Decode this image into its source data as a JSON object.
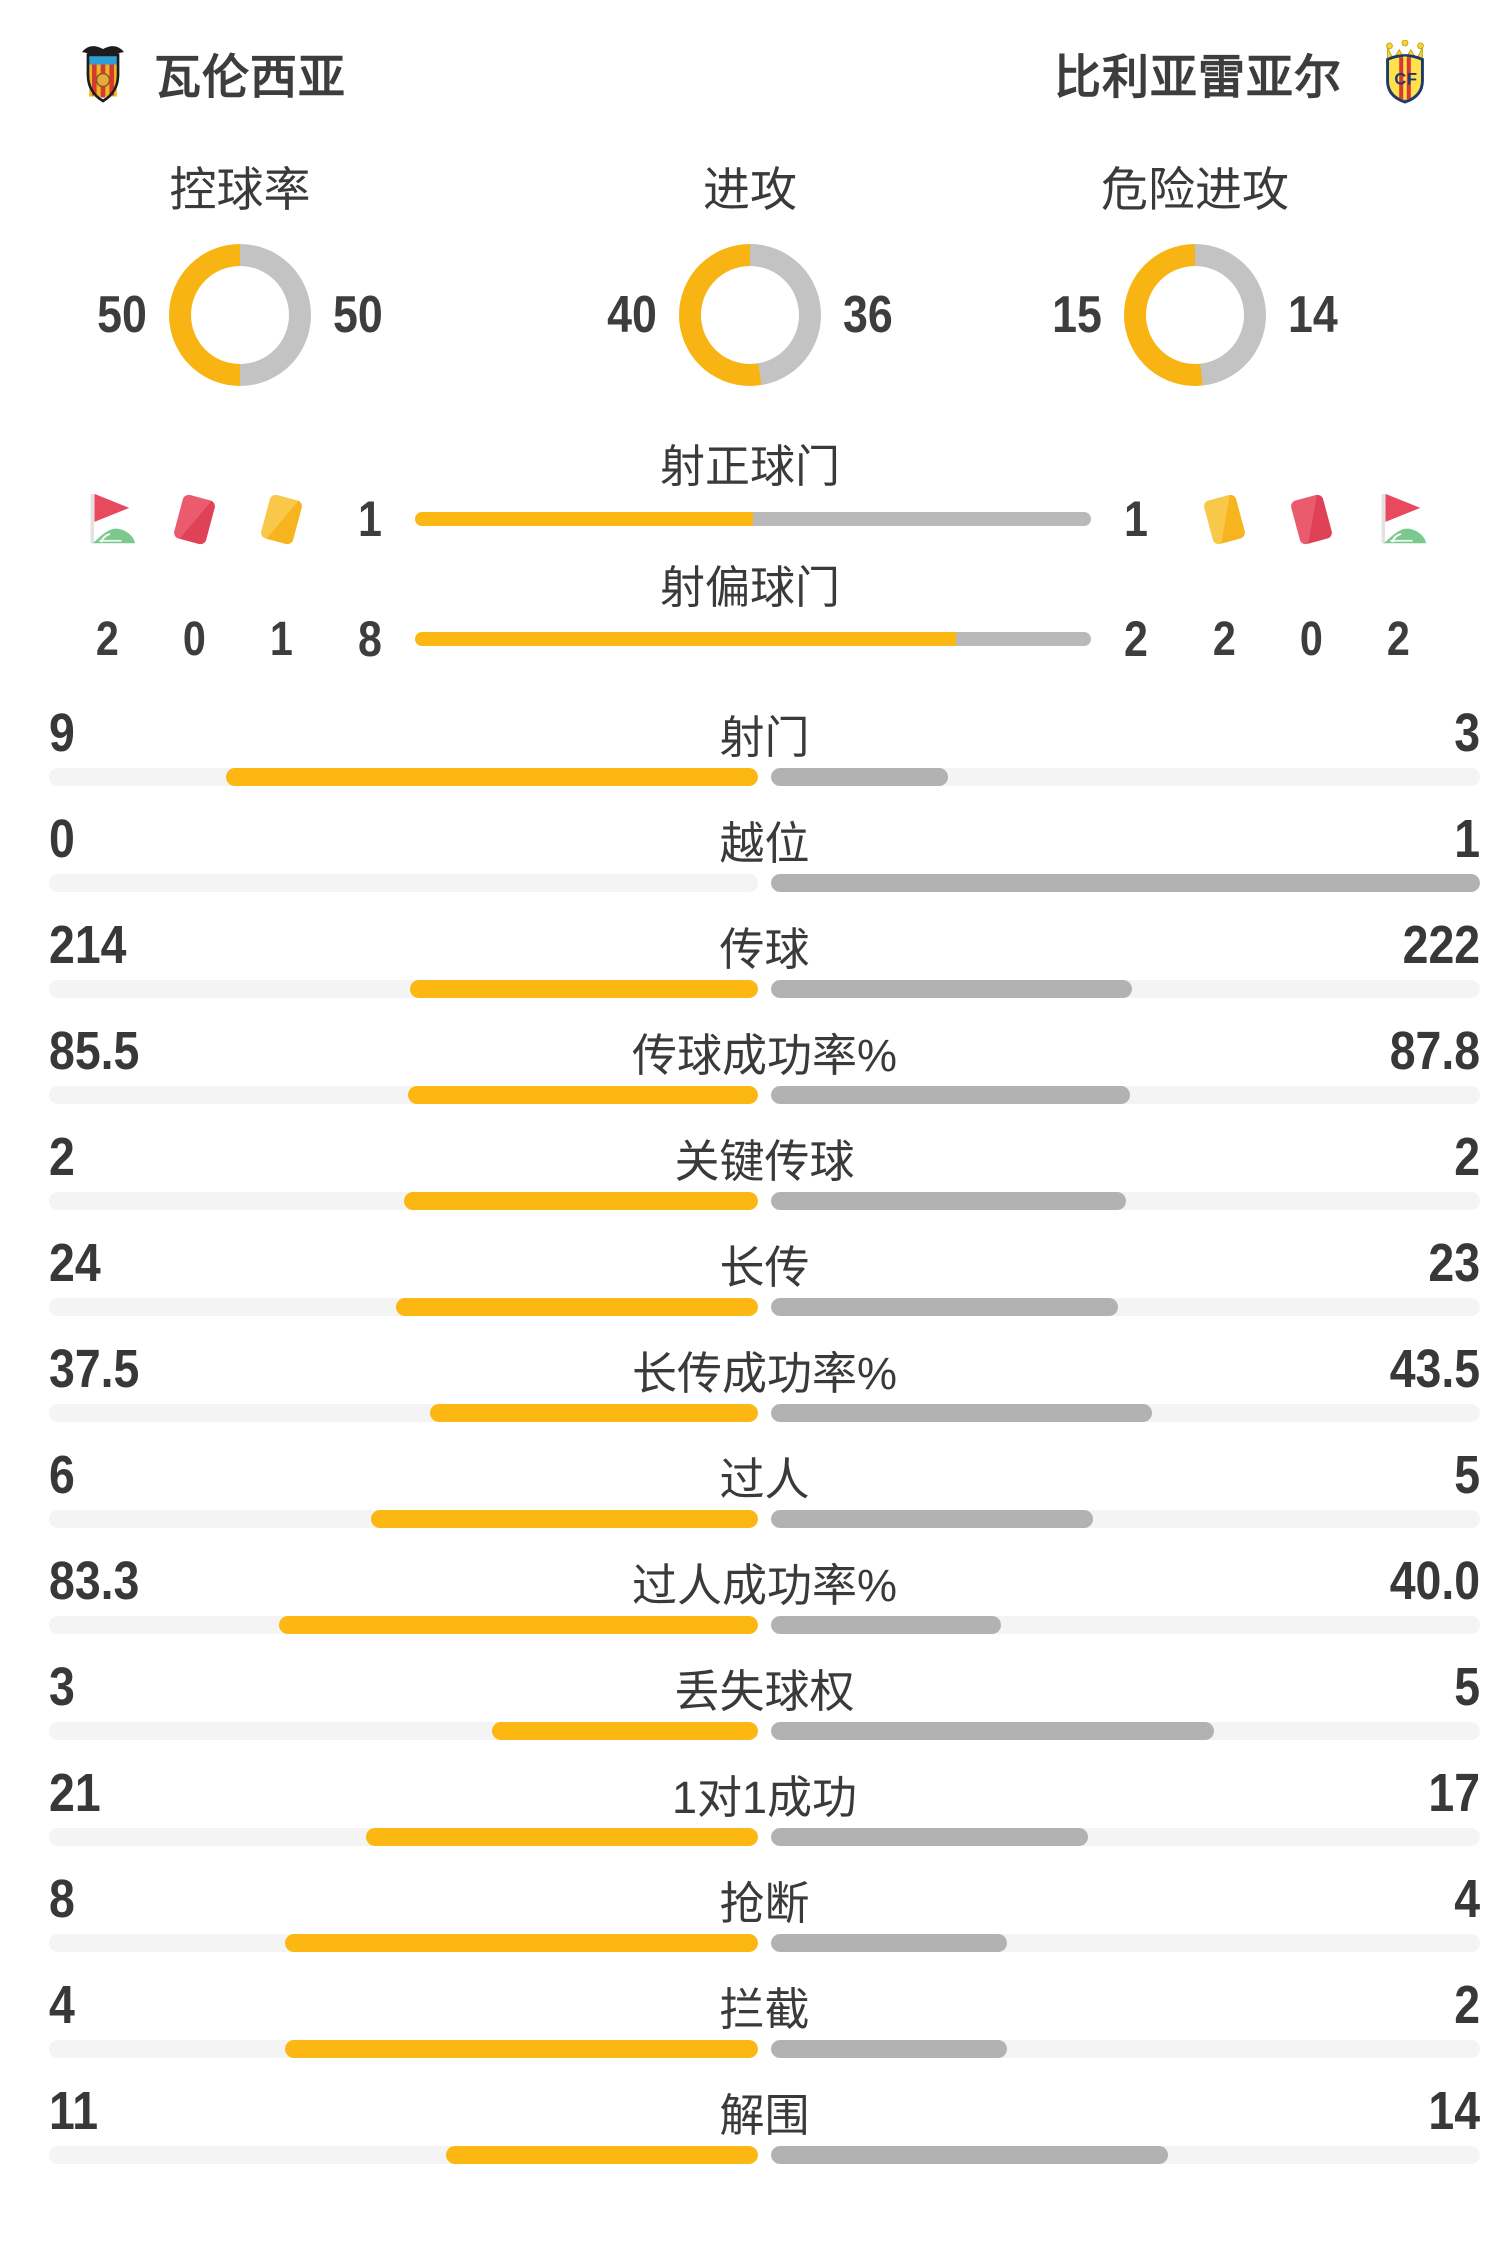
{
  "teams": {
    "home": {
      "name": "瓦伦西亚"
    },
    "away": {
      "name": "比利亚雷亚尔"
    }
  },
  "colors": {
    "home_fill": "#fdb712",
    "away_fill": "#b2b2b2",
    "donut_home": "#f7b412",
    "donut_away": "#c3c3c3",
    "bar_track": "#f4f4f4",
    "text": "#3d3d3d",
    "red_card": "#e25065",
    "yellow_card": "#f7bb2e",
    "flag_green": "#7cc98d",
    "flag_red": "#e8495d"
  },
  "icons": {
    "home": [
      "corner-flag-icon",
      "red-card-icon",
      "yellow-card-icon"
    ],
    "away": [
      "yellow-card-icon",
      "red-card-icon",
      "corner-flag-icon"
    ]
  },
  "donuts": [
    {
      "label": "进攻",
      "home": "40",
      "away": "36"
    },
    {
      "label": "危险进攻",
      "home": "15",
      "away": "14"
    },
    {
      "label": "控球率",
      "home": "50",
      "away": "50"
    }
  ],
  "shots": [
    {
      "label": "射正球门",
      "home": "1",
      "away": "1"
    },
    {
      "label": "射偏球门",
      "home": "8",
      "away": "2"
    }
  ],
  "discipline": {
    "home": {
      "corner": "2",
      "red": "0",
      "yellow": "1"
    },
    "away": {
      "yellow": "2",
      "red": "0",
      "corner": "2"
    }
  },
  "stats": [
    {
      "label": "射门",
      "home": "9",
      "away": "3"
    },
    {
      "label": "越位",
      "home": "0",
      "away": "1"
    },
    {
      "label": "传球",
      "home": "214",
      "away": "222"
    },
    {
      "label": "传球成功率%",
      "home": "85.5",
      "away": "87.8"
    },
    {
      "label": "关键传球",
      "home": "2",
      "away": "2"
    },
    {
      "label": "长传",
      "home": "24",
      "away": "23"
    },
    {
      "label": "长传成功率%",
      "home": "37.5",
      "away": "43.5"
    },
    {
      "label": "过人",
      "home": "6",
      "away": "5"
    },
    {
      "label": "过人成功率%",
      "home": "83.3",
      "away": "40.0"
    },
    {
      "label": "丢失球权",
      "home": "3",
      "away": "5"
    },
    {
      "label": "1对1成功",
      "home": "21",
      "away": "17"
    },
    {
      "label": "抢断",
      "home": "8",
      "away": "4"
    },
    {
      "label": "拦截",
      "home": "4",
      "away": "2"
    },
    {
      "label": "解围",
      "home": "11",
      "away": "14"
    }
  ],
  "chart_data": [
    {
      "type": "pie",
      "title": "进攻",
      "series": [
        {
          "name": "瓦伦西亚",
          "value": 40
        },
        {
          "name": "比利亚雷亚尔",
          "value": 36
        }
      ]
    },
    {
      "type": "pie",
      "title": "危险进攻",
      "series": [
        {
          "name": "瓦伦西亚",
          "value": 15
        },
        {
          "name": "比利亚雷亚尔",
          "value": 14
        }
      ]
    },
    {
      "type": "pie",
      "title": "控球率",
      "series": [
        {
          "name": "瓦伦西亚",
          "value": 50
        },
        {
          "name": "比利亚雷亚尔",
          "value": 50
        }
      ]
    },
    {
      "type": "bar",
      "title": "比赛统计对比",
      "categories": [
        "射正球门",
        "射偏球门",
        "角球",
        "红牌",
        "黄牌",
        "射门",
        "越位",
        "传球",
        "传球成功率%",
        "关键传球",
        "长传",
        "长传成功率%",
        "过人",
        "过人成功率%",
        "丢失球权",
        "1对1成功",
        "抢断",
        "拦截",
        "解围"
      ],
      "series": [
        {
          "name": "瓦伦西亚",
          "values": [
            1,
            8,
            2,
            0,
            1,
            9,
            0,
            214,
            85.5,
            2,
            24,
            37.5,
            6,
            83.3,
            3,
            21,
            8,
            4,
            11
          ]
        },
        {
          "name": "比利亚雷亚尔",
          "values": [
            1,
            2,
            2,
            0,
            2,
            3,
            1,
            222,
            87.8,
            2,
            23,
            43.5,
            5,
            40.0,
            5,
            17,
            4,
            2,
            14
          ]
        }
      ],
      "legend_position": "top",
      "grid": false
    }
  ]
}
